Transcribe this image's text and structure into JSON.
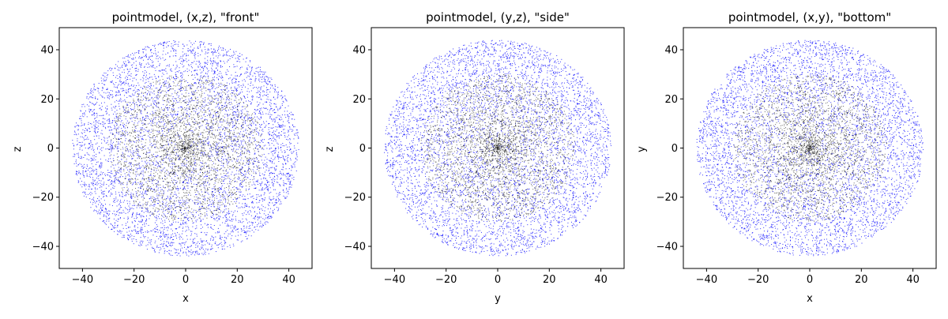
{
  "figure": {
    "background": "#ffffff"
  },
  "chart_data": [
    {
      "type": "scatter",
      "title": "pointmodel, (x,z), \"front\"",
      "xlabel": "x",
      "ylabel": "z",
      "xlim": [
        -49,
        49
      ],
      "ylim": [
        -49,
        49
      ],
      "xticks": [
        -40,
        -20,
        0,
        20,
        40
      ],
      "yticks": [
        -40,
        -20,
        0,
        20,
        40
      ],
      "tick_labels_x": [
        "−40",
        "−20",
        "0",
        "20",
        "40"
      ],
      "tick_labels_y": [
        "−40",
        "−20",
        "0",
        "20",
        "40"
      ],
      "grid": false,
      "series": [
        {
          "color": "#0000ff",
          "marker": "dot",
          "distribution": {
            "shape": "filled disc",
            "center": [
              0,
              0
            ],
            "radius": 44,
            "count": 5200,
            "seed": 11,
            "density": "denser toward rim"
          }
        },
        {
          "color": "#000000",
          "marker": "dot",
          "distribution": {
            "shape": "filled disc",
            "center": [
              0,
              0
            ],
            "radius": 30,
            "count": 2800,
            "seed": 17,
            "density": "concentrated in center"
          }
        }
      ]
    },
    {
      "type": "scatter",
      "title": "pointmodel, (y,z), \"side\"",
      "xlabel": "y",
      "ylabel": "z",
      "xlim": [
        -49,
        49
      ],
      "ylim": [
        -49,
        49
      ],
      "xticks": [
        -40,
        -20,
        0,
        20,
        40
      ],
      "yticks": [
        -40,
        -20,
        0,
        20,
        40
      ],
      "tick_labels_x": [
        "−40",
        "−20",
        "0",
        "20",
        "40"
      ],
      "tick_labels_y": [
        "−40",
        "−20",
        "0",
        "20",
        "40"
      ],
      "grid": false,
      "series": [
        {
          "color": "#0000ff",
          "marker": "dot",
          "distribution": {
            "shape": "filled disc",
            "center": [
              0,
              0
            ],
            "radius": 44,
            "count": 5200,
            "seed": 23,
            "density": "denser toward rim"
          }
        },
        {
          "color": "#000000",
          "marker": "dot",
          "distribution": {
            "shape": "filled disc",
            "center": [
              0,
              0
            ],
            "radius": 30,
            "count": 2800,
            "seed": 29,
            "density": "concentrated in center"
          }
        }
      ]
    },
    {
      "type": "scatter",
      "title": "pointmodel, (x,y), \"bottom\"",
      "xlabel": "x",
      "ylabel": "y",
      "xlim": [
        -49,
        49
      ],
      "ylim": [
        -49,
        49
      ],
      "xticks": [
        -40,
        -20,
        0,
        20,
        40
      ],
      "yticks": [
        -40,
        -20,
        0,
        20,
        40
      ],
      "tick_labels_x": [
        "−40",
        "−20",
        "0",
        "20",
        "40"
      ],
      "tick_labels_y": [
        "−40",
        "−20",
        "0",
        "20",
        "40"
      ],
      "grid": false,
      "series": [
        {
          "color": "#0000ff",
          "marker": "dot",
          "distribution": {
            "shape": "filled disc",
            "center": [
              0,
              0
            ],
            "radius": 44,
            "count": 5200,
            "seed": 31,
            "density": "denser toward rim"
          }
        },
        {
          "color": "#000000",
          "marker": "dot",
          "distribution": {
            "shape": "filled disc",
            "center": [
              0,
              0
            ],
            "radius": 30,
            "count": 2800,
            "seed": 37,
            "density": "concentrated in center"
          }
        }
      ]
    }
  ]
}
